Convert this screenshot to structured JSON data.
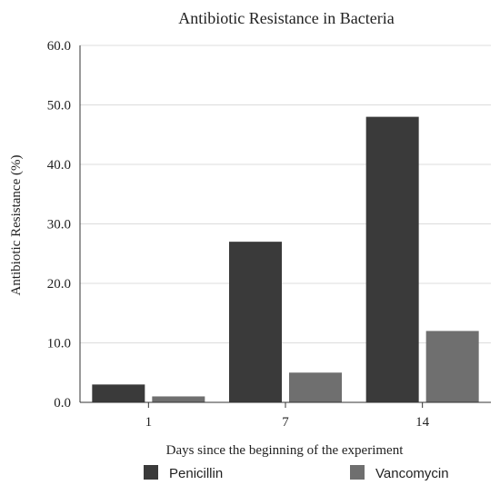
{
  "chart_data": {
    "type": "bar",
    "title": "Antibiotic Resistance in Bacteria",
    "xlabel": "Days since the beginning of the experiment",
    "ylabel": "Antibiotic Resistance (%)",
    "categories": [
      "1",
      "7",
      "14"
    ],
    "series": [
      {
        "name": "Penicillin",
        "values": [
          3.0,
          27.0,
          48.0
        ],
        "color": "#3a3a3a"
      },
      {
        "name": "Vancomycin",
        "values": [
          1.0,
          5.0,
          12.0
        ],
        "color": "#6f6f6f"
      }
    ],
    "ylim": [
      0,
      60
    ],
    "yticks": [
      "0.0",
      "10.0",
      "20.0",
      "30.0",
      "40.0",
      "50.0",
      "60.0"
    ],
    "grid": true,
    "legend": "bottom"
  }
}
